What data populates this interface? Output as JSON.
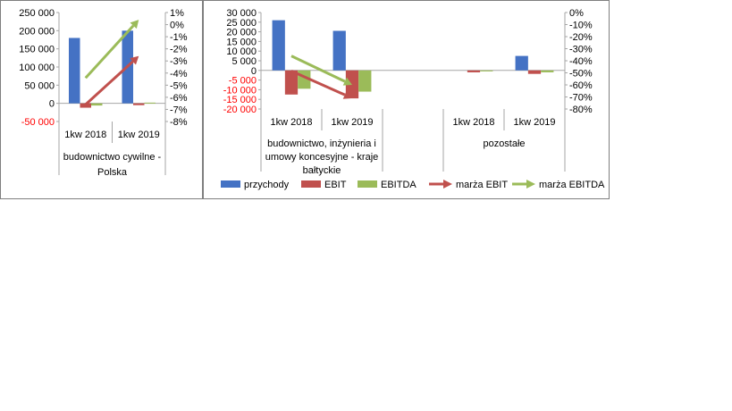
{
  "chart_data": [
    {
      "type": "bar",
      "categories": [
        "1kw 2018",
        "1kw 2019"
      ],
      "group_label": "budownictwo cywilne - Polska",
      "group_label_lines": [
        "budownictwo cywilne -",
        "Polska"
      ],
      "y_left": {
        "min": -50000,
        "max": 250000,
        "step": 50000
      },
      "y_right": {
        "min": -8,
        "max": 1,
        "step": 1,
        "unit": "%"
      },
      "left_ticks": [
        "-50 000",
        "0",
        "50 000",
        "100 000",
        "150 000",
        "200 000",
        "250 000"
      ],
      "right_ticks": [
        "-8%",
        "-7%",
        "-6%",
        "-5%",
        "-4%",
        "-3%",
        "-2%",
        "-1%",
        "0%",
        "1%"
      ],
      "series": [
        {
          "name": "przychody",
          "values": [
            180000,
            200000
          ]
        },
        {
          "name": "EBIT",
          "values": [
            -12000,
            -5000
          ]
        },
        {
          "name": "EBITDA",
          "values": [
            -6000,
            2000
          ]
        }
      ],
      "lines": [
        {
          "name": "marża EBIT",
          "values": [
            -6.6,
            -2.6
          ]
        },
        {
          "name": "marża EBITDA",
          "values": [
            -4.4,
            0.4
          ]
        }
      ]
    },
    {
      "type": "bar",
      "categories": [
        "1kw 2018",
        "1kw 2019",
        "",
        "1kw 2018",
        "1kw 2019"
      ],
      "groups": [
        {
          "label_lines": [
            "budownictwo, inżynieria i",
            "umowy koncesyjne - kraje",
            "bałtyckie"
          ]
        },
        {
          "label_lines": []
        },
        {
          "label_lines": [
            "pozostałe"
          ]
        }
      ],
      "y_left": {
        "min": -20000,
        "max": 30000,
        "step": 5000
      },
      "y_right": {
        "min": -80,
        "max": 0,
        "step": 10,
        "unit": "%"
      },
      "left_ticks": [
        "-20 000",
        "-15 000",
        "-10 000",
        "-5 000",
        "0",
        "5 000",
        "10 000",
        "15 000",
        "20 000",
        "25 000",
        "30 000"
      ],
      "right_ticks": [
        "-80%",
        "-70%",
        "-60%",
        "-50%",
        "-40%",
        "-30%",
        "-20%",
        "-10%",
        "0%"
      ],
      "series": [
        {
          "name": "przychody",
          "values": [
            26000,
            20500,
            0,
            0,
            7500
          ]
        },
        {
          "name": "EBIT",
          "values": [
            -12500,
            -14500,
            0,
            -1000,
            -1800
          ]
        },
        {
          "name": "EBITDA",
          "values": [
            -9500,
            -11000,
            0,
            -500,
            -1000
          ]
        }
      ],
      "lines": [
        {
          "name": "marża EBIT",
          "values": [
            -48.5,
            -71,
            null,
            null,
            null
          ]
        },
        {
          "name": "marża EBITDA",
          "values": [
            -36,
            -60,
            null,
            null,
            null
          ]
        }
      ]
    }
  ],
  "legend": [
    {
      "name": "przychody",
      "kind": "bar"
    },
    {
      "name": "EBIT",
      "kind": "bar"
    },
    {
      "name": "EBITDA",
      "kind": "bar"
    },
    {
      "name": "marża EBIT",
      "kind": "arrow"
    },
    {
      "name": "marża EBITDA",
      "kind": "arrow"
    }
  ],
  "colors": {
    "przychody": "#4472c4",
    "EBIT": "#c0504d",
    "EBITDA": "#9bbb59",
    "negative_tick": "#ff0000",
    "axis": "#a6a6a6",
    "border": "#7f7f7f",
    "text": "#000000"
  }
}
